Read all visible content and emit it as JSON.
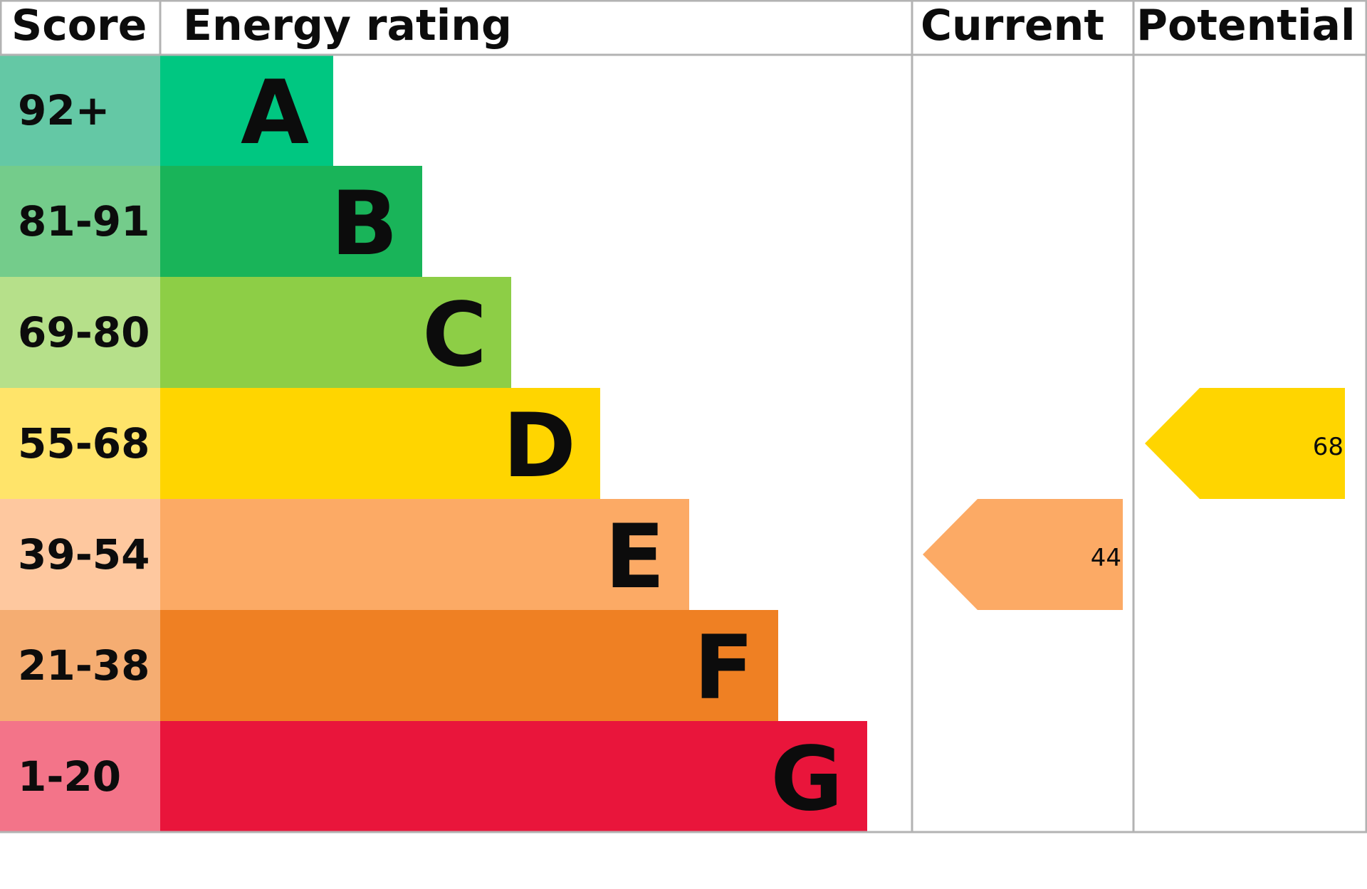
{
  "header": {
    "score": "Score",
    "rating": "Energy rating",
    "current": "Current",
    "potential": "Potential"
  },
  "bands": [
    {
      "score": "92+",
      "letter": "A",
      "color": "#00c781",
      "score_color": "#64c8a5"
    },
    {
      "score": "81-91",
      "letter": "B",
      "color": "#19b459",
      "score_color": "#74cc8b"
    },
    {
      "score": "69-80",
      "letter": "C",
      "color": "#8dce46",
      "score_color": "#b6e08a"
    },
    {
      "score": "55-68",
      "letter": "D",
      "color": "#ffd500",
      "score_color": "#ffe46a"
    },
    {
      "score": "39-54",
      "letter": "E",
      "color": "#fcaa65",
      "score_color": "#fec89f"
    },
    {
      "score": "21-38",
      "letter": "F",
      "color": "#ef8023",
      "score_color": "#f5ad72"
    },
    {
      "score": "1-20",
      "letter": "G",
      "color": "#e9153b",
      "score_color": "#f37489"
    }
  ],
  "current": {
    "value": 44
  },
  "potential": {
    "value": 68
  }
}
